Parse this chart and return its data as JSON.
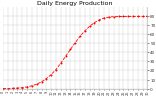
{
  "title": "Daily Energy Production",
  "bg_color": "#ffffff",
  "plot_bg": "#ffffff",
  "grid_color": "#cccccc",
  "line_color": "#ff0000",
  "y_values": [
    0.1,
    0.2,
    0.4,
    0.7,
    1.2,
    2.0,
    3.2,
    5.0,
    7.5,
    11.0,
    15.5,
    21.0,
    28.0,
    35.5,
    43.0,
    50.5,
    57.5,
    63.5,
    68.5,
    72.5,
    75.5,
    77.5,
    78.5,
    79.0,
    79.2,
    79.3,
    79.3,
    79.3,
    79.3,
    79.3,
    79.3
  ],
  "ylim": [
    0,
    90
  ],
  "xlim": [
    0,
    30
  ],
  "y_ticks": [
    0,
    10,
    20,
    30,
    40,
    50,
    60,
    70,
    80
  ],
  "y_tick_labels": [
    "0",
    "10",
    "20",
    "30",
    "40",
    "50",
    "60",
    "70",
    "80"
  ],
  "title_fontsize": 4.5,
  "title_color": "#000000",
  "tick_color": "#333333",
  "tick_fontsize": 3.0,
  "line_width": 0.6,
  "marker_size": 1.0,
  "spine_color": "#aaaaaa"
}
